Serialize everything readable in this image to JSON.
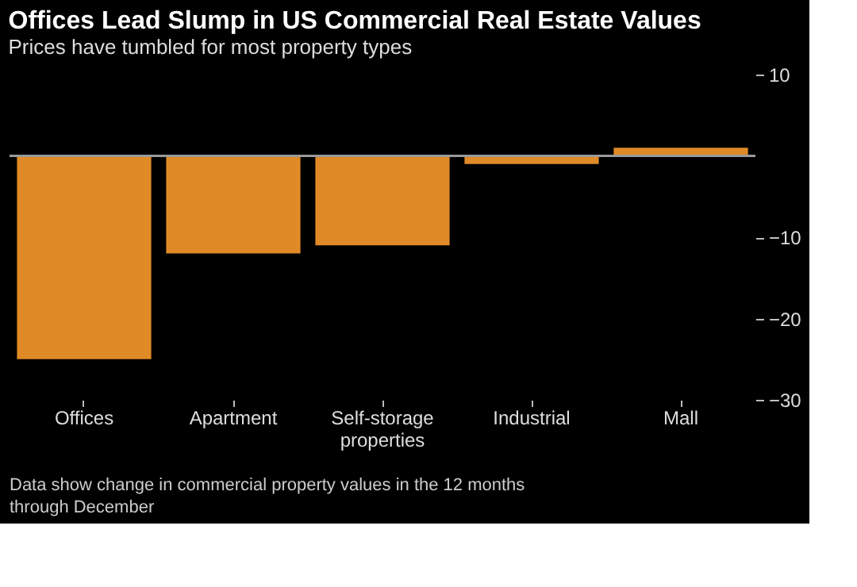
{
  "chart_data": {
    "type": "bar",
    "title": "Offices Lead Slump in US Commercial Real Estate Values",
    "subtitle": "Prices have tumbled for most property types",
    "categories": [
      "Offices",
      "Apartment",
      "Self-storage properties",
      "Industrial",
      "Mall"
    ],
    "values": [
      -25,
      -12,
      -11,
      -1,
      1
    ],
    "color": "#e08a27",
    "ylim": [
      -30,
      10
    ],
    "yticks": [
      10,
      -10,
      -20,
      -30
    ],
    "grid": false,
    "ref_lines": [
      {
        "axis": "y",
        "value": 0,
        "color": "#9a9a9a"
      }
    ],
    "annotations": [
      "Data show change in commercial property values in the 12 months through December"
    ]
  }
}
